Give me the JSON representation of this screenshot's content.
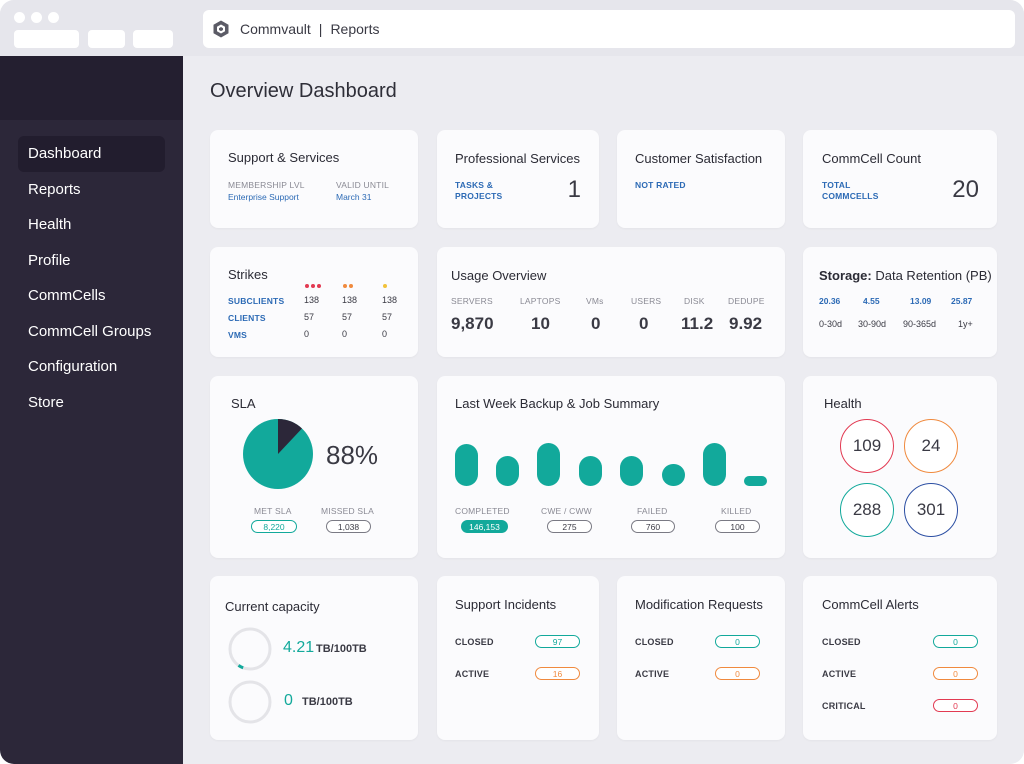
{
  "browser": {
    "app_name": "Commvault",
    "separator": "|",
    "page_name": "Reports"
  },
  "sidebar": {
    "items": [
      {
        "label": "Dashboard",
        "active": true
      },
      {
        "label": "Reports"
      },
      {
        "label": "Health"
      },
      {
        "label": "Profile"
      },
      {
        "label": "CommCells"
      },
      {
        "label": "CommCell Groups"
      },
      {
        "label": "Configuration"
      },
      {
        "label": "Store"
      }
    ]
  },
  "page": {
    "title": "Overview Dashboard"
  },
  "support_services": {
    "title": "Support & Services",
    "membership_label": "MEMBERSHIP LVL",
    "membership_value": "Enterprise Support",
    "valid_label": "VALID UNTIL",
    "valid_value": "March 31"
  },
  "professional_services": {
    "title": "Professional Services",
    "label": "TASKS & PROJECTS",
    "value": "1"
  },
  "customer_satisfaction": {
    "title": "Customer Satisfaction",
    "label": "NOT RATED"
  },
  "commcell_count": {
    "title": "CommCell Count",
    "label": "TOTAL COMMCELLS",
    "value": "20"
  },
  "strikes": {
    "title": "Strikes",
    "dot_colors": [
      "#e23a52",
      "#f08a3e",
      "#f2c23a"
    ],
    "rows": [
      {
        "label": "SUBCLIENTS",
        "values": [
          "138",
          "138",
          "138"
        ]
      },
      {
        "label": "CLIENTS",
        "values": [
          "57",
          "57",
          "57"
        ]
      },
      {
        "label": "VMS",
        "values": [
          "0",
          "0",
          "0"
        ]
      }
    ]
  },
  "usage_overview": {
    "title": "Usage Overview",
    "items": [
      {
        "label": "SERVERS",
        "value": "9,870"
      },
      {
        "label": "LAPTOPS",
        "value": "10"
      },
      {
        "label": "VMs",
        "value": "0"
      },
      {
        "label": "USERS",
        "value": "0"
      },
      {
        "label": "DISK",
        "value": "11.2"
      },
      {
        "label": "DEDUPE",
        "value": "9.92"
      }
    ]
  },
  "storage": {
    "title_bold": "Storage:",
    "title_rest": "Data Retention (PB)",
    "items": [
      {
        "value": "20.36",
        "label": "0-30d"
      },
      {
        "value": "4.55",
        "label": "30-90d"
      },
      {
        "value": "13.09",
        "label": "90-365d"
      },
      {
        "value": "25.87",
        "label": "1y+"
      }
    ]
  },
  "sla": {
    "title": "SLA",
    "percent": "88%",
    "met_fraction": 0.88,
    "met_label": "MET SLA",
    "met_value": "8,220",
    "missed_label": "MISSED SLA",
    "missed_value": "1,038",
    "colors": {
      "met": "#12a99b",
      "missed": "#2c2739"
    }
  },
  "backup_summary": {
    "title": "Last Week Backup & Job Summary",
    "bar_levels": [
      0.78,
      0.55,
      0.8,
      0.55,
      0.55,
      0.4,
      0.8,
      0.15
    ],
    "stats": [
      {
        "label": "COMPLETED",
        "value": "146,153",
        "style": "teal-fill"
      },
      {
        "label": "CWE / CWW",
        "value": "275",
        "style": "grey"
      },
      {
        "label": "FAILED",
        "value": "760",
        "style": "grey"
      },
      {
        "label": "KILLED",
        "value": "100",
        "style": "grey"
      }
    ]
  },
  "health": {
    "title": "Health",
    "items": [
      {
        "value": "109",
        "color": "#e23a52"
      },
      {
        "value": "24",
        "color": "#f08a3e"
      },
      {
        "value": "288",
        "color": "#12a99b"
      },
      {
        "value": "301",
        "color": "#2c4fa3"
      }
    ]
  },
  "capacity": {
    "title": "Current capacity",
    "items": [
      {
        "value": "4.21",
        "unit": "TB/100TB",
        "fraction": 0.042
      },
      {
        "value": "0",
        "unit": "TB/100TB",
        "fraction": 0
      }
    ]
  },
  "support_incidents": {
    "title": "Support Incidents",
    "rows": [
      {
        "label": "CLOSED",
        "value": "97",
        "style": "teal-outline"
      },
      {
        "label": "ACTIVE",
        "value": "16",
        "style": "orange"
      }
    ]
  },
  "modification_requests": {
    "title": "Modification Requests",
    "rows": [
      {
        "label": "CLOSED",
        "value": "0",
        "style": "teal-outline"
      },
      {
        "label": "ACTIVE",
        "value": "0",
        "style": "orange"
      }
    ]
  },
  "commcell_alerts": {
    "title": "CommCell Alerts",
    "rows": [
      {
        "label": "CLOSED",
        "value": "0",
        "style": "teal-outline"
      },
      {
        "label": "ACTIVE",
        "value": "0",
        "style": "orange"
      },
      {
        "label": "CRITICAL",
        "value": "0",
        "style": "red"
      }
    ]
  }
}
